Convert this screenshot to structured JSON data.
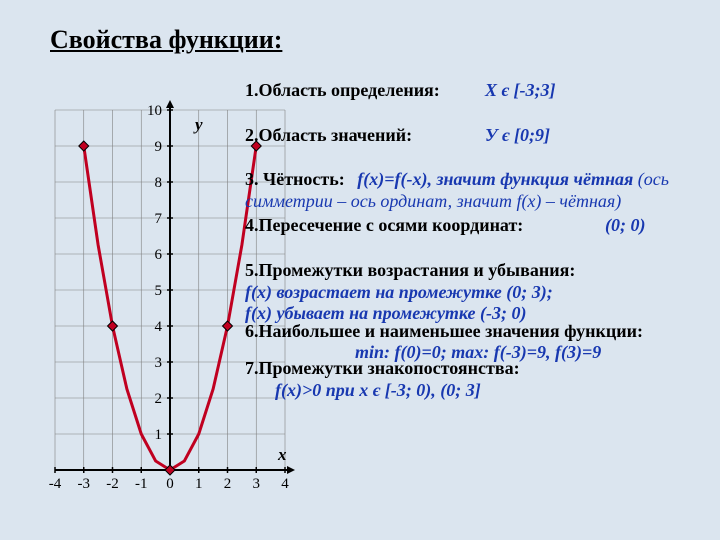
{
  "title": "Свойства функции:",
  "chart": {
    "type": "line",
    "x_ticks": [
      -4,
      -3,
      -2,
      -1,
      0,
      1,
      2,
      3,
      4
    ],
    "y_ticks": [
      0,
      1,
      2,
      3,
      4,
      5,
      6,
      7,
      8,
      9,
      10
    ],
    "xlim": [
      -4,
      4
    ],
    "ylim": [
      0,
      10
    ],
    "xlabel": "x",
    "ylabel": "y",
    "background": "#dbe5ef",
    "grid_color": "#808080",
    "axis_color": "#000000",
    "tick_font_size": 15,
    "curve": {
      "color": "#c00020",
      "width": 3,
      "points_x": [
        -3,
        -2.5,
        -2,
        -1.5,
        -1,
        -0.5,
        0,
        0.5,
        1,
        1.5,
        2,
        2.5,
        3
      ],
      "points_y": [
        9,
        6.25,
        4,
        2.25,
        1,
        0.25,
        0,
        0.25,
        1,
        2.25,
        4,
        6.25,
        9
      ]
    },
    "markers": {
      "fill": "#c00020",
      "border": "#000000",
      "radius": 5,
      "points": [
        [
          -3,
          9
        ],
        [
          -2,
          4
        ],
        [
          0,
          0
        ],
        [
          2,
          4
        ],
        [
          3,
          9
        ]
      ]
    }
  },
  "props": {
    "p1_label": "1.Область определения:",
    "p1_ans": "X є [-3;3]",
    "p2_label": "2.Область значений:",
    "p2_ans": "У є [0;9]",
    "p3_label": "3. Чётность:",
    "p3_ans": "f(x)=f(-x), значит функция чётная",
    "p3_sub": "(ось симметрии – ось ординат, значит f(x) – чётная)",
    "p4_label": "4.Пересечение с осями координат:",
    "p4_ans": "(0; 0)",
    "p5_label": "5.Промежутки возрастания и убывания:",
    "p5_ans1": "f(x) возрастает на промежутке (0; 3);",
    "p5_ans2": "f(x) убывает на промежутке (-3; 0)",
    "p6_label": "6.Наибольшее и наименьшее значения функции:",
    "p6_ans": "min: f(0)=0;   max: f(-3)=9, f(3)=9",
    "p7_label": "7.Промежутки знакопостоянства:",
    "p7_ans": "f(x)>0 при x є [-3; 0), (0; 3]"
  },
  "colors": {
    "text": "#000000",
    "answer": "#1838b0"
  }
}
